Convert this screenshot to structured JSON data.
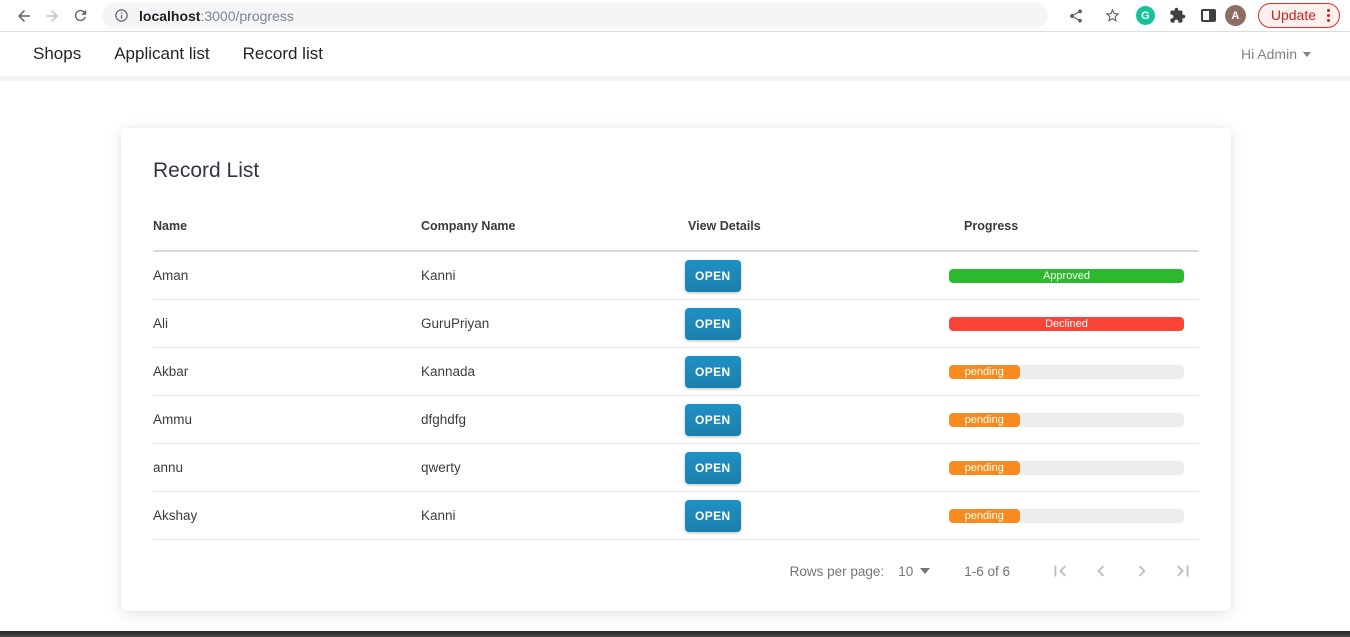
{
  "browser": {
    "url": {
      "host": "localhost",
      "path": ":3000/progress"
    },
    "update_button": "Update",
    "avatar_letter": "A",
    "grammarly_letter": "G"
  },
  "nav": {
    "items": [
      {
        "label": "Shops"
      },
      {
        "label": "Applicant list"
      },
      {
        "label": "Record list"
      }
    ],
    "user_menu": "Hi Admin"
  },
  "card": {
    "title": "Record List",
    "columns": {
      "name": "Name",
      "company": "Company Name",
      "view": "View Details",
      "progress": "Progress"
    },
    "open_label": "OPEN",
    "rows": [
      {
        "name": "Aman",
        "company": "Kanni",
        "status": "Approved",
        "progress": 100,
        "color": "#2db92d"
      },
      {
        "name": "Ali",
        "company": "GuruPriyan",
        "status": "Declined",
        "progress": 100,
        "color": "#fb4438"
      },
      {
        "name": "Akbar",
        "company": "Kannada",
        "status": "pending",
        "progress": 30,
        "color": "#f78b1f"
      },
      {
        "name": "Ammu",
        "company": "dfghdfg",
        "status": "pending",
        "progress": 30,
        "color": "#f78b1f"
      },
      {
        "name": "annu",
        "company": "qwerty",
        "status": "pending",
        "progress": 30,
        "color": "#f78b1f"
      },
      {
        "name": "Akshay",
        "company": "Kanni",
        "status": "pending",
        "progress": 30,
        "color": "#f78b1f"
      }
    ],
    "pagination": {
      "rows_per_page_label": "Rows per page:",
      "rows_per_page_value": "10",
      "range": "1-6 of 6"
    }
  },
  "colors": {
    "open_button_blue": "#1d87bb",
    "approved_green": "#2db92d",
    "declined_red": "#fb4438",
    "pending_orange": "#f78b1f",
    "progress_track": "#ededed",
    "update_red": "#c5221f"
  }
}
